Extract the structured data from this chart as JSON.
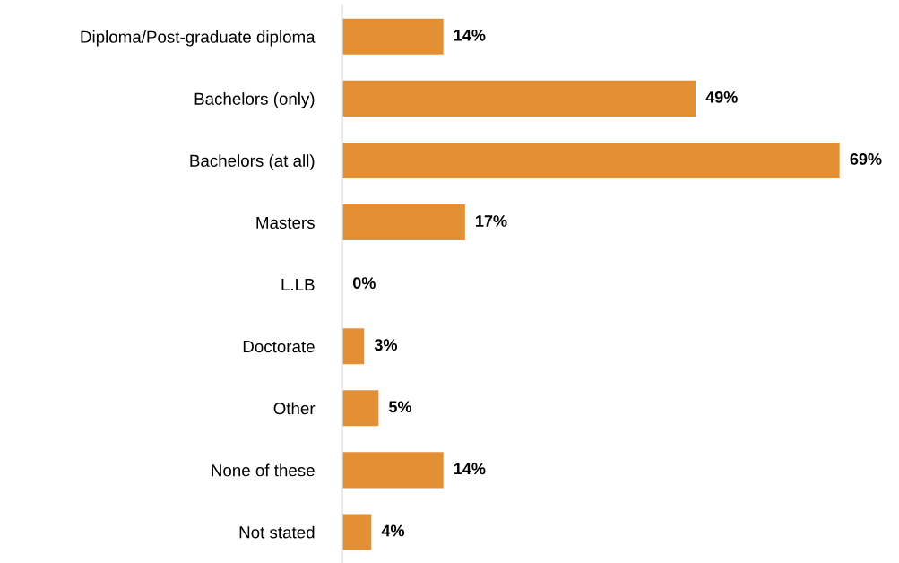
{
  "chart_data": {
    "type": "bar",
    "orientation": "horizontal",
    "categories": [
      "Diploma/Post-graduate diploma",
      "Bachelors (only)",
      "Bachelors (at all)",
      "Masters",
      "L.LB",
      "Doctorate",
      "Other",
      "None of these",
      "Not stated"
    ],
    "values": [
      14,
      49,
      69,
      17,
      0,
      3,
      5,
      14,
      4
    ],
    "value_labels": [
      "14%",
      "49%",
      "69%",
      "17%",
      "0%",
      "3%",
      "5%",
      "14%",
      "4%"
    ],
    "color": "#e39035",
    "grid": false
  }
}
